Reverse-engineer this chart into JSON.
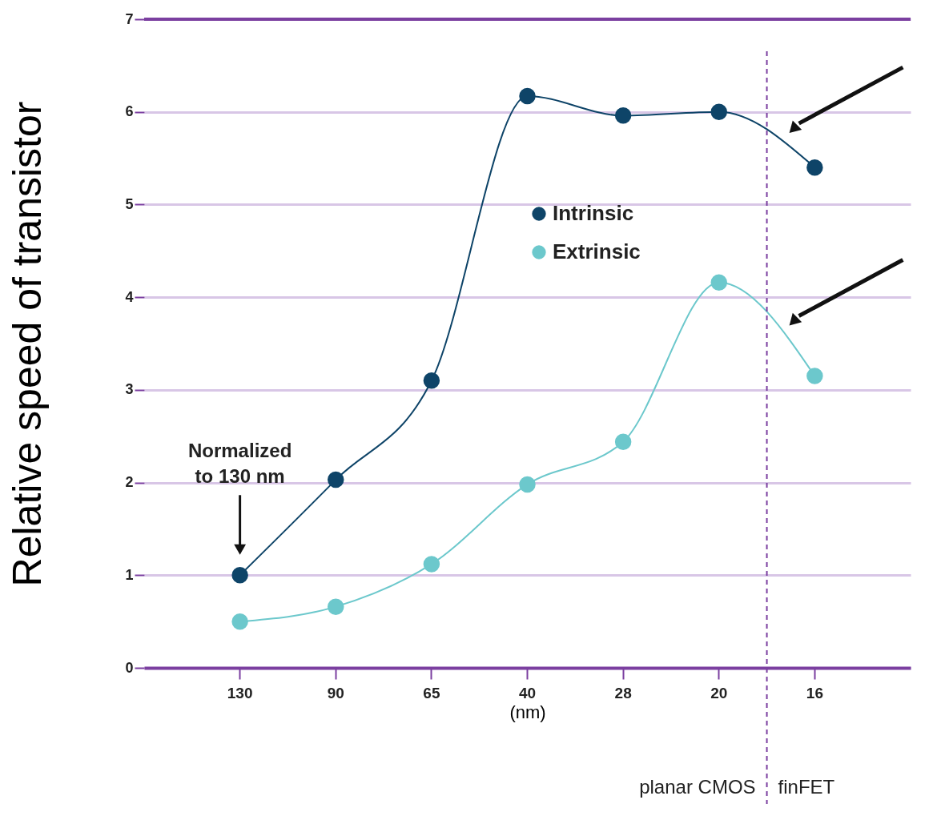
{
  "chart_data": {
    "type": "line",
    "ylabel": "Relative speed of transistor",
    "xlabel": "(nm)",
    "categories": [
      "130",
      "90",
      "65",
      "40",
      "28",
      "20",
      "16"
    ],
    "series": [
      {
        "name": "Intrinsic",
        "color": "#0e4468",
        "values": [
          1.0,
          2.03,
          3.1,
          6.17,
          5.96,
          6.0,
          5.4
        ]
      },
      {
        "name": "Extrinsic",
        "color": "#6cc8cc",
        "values": [
          0.5,
          0.66,
          1.12,
          1.98,
          2.44,
          4.16,
          3.15
        ]
      }
    ],
    "ylim": [
      0,
      7
    ],
    "yticks": [
      0,
      1,
      2,
      3,
      4,
      5,
      6,
      7
    ],
    "grid": "y",
    "legend": "top",
    "marker": "circle",
    "line_style": "solid",
    "ref_lines": [
      {
        "axis": "x",
        "value": "16",
        "label": null,
        "color": "#7b3fa0",
        "line_style": "dashed"
      }
    ],
    "annotations": [
      "Normalized\nto 130 nm",
      "planar CMOS",
      "finFET"
    ]
  }
}
